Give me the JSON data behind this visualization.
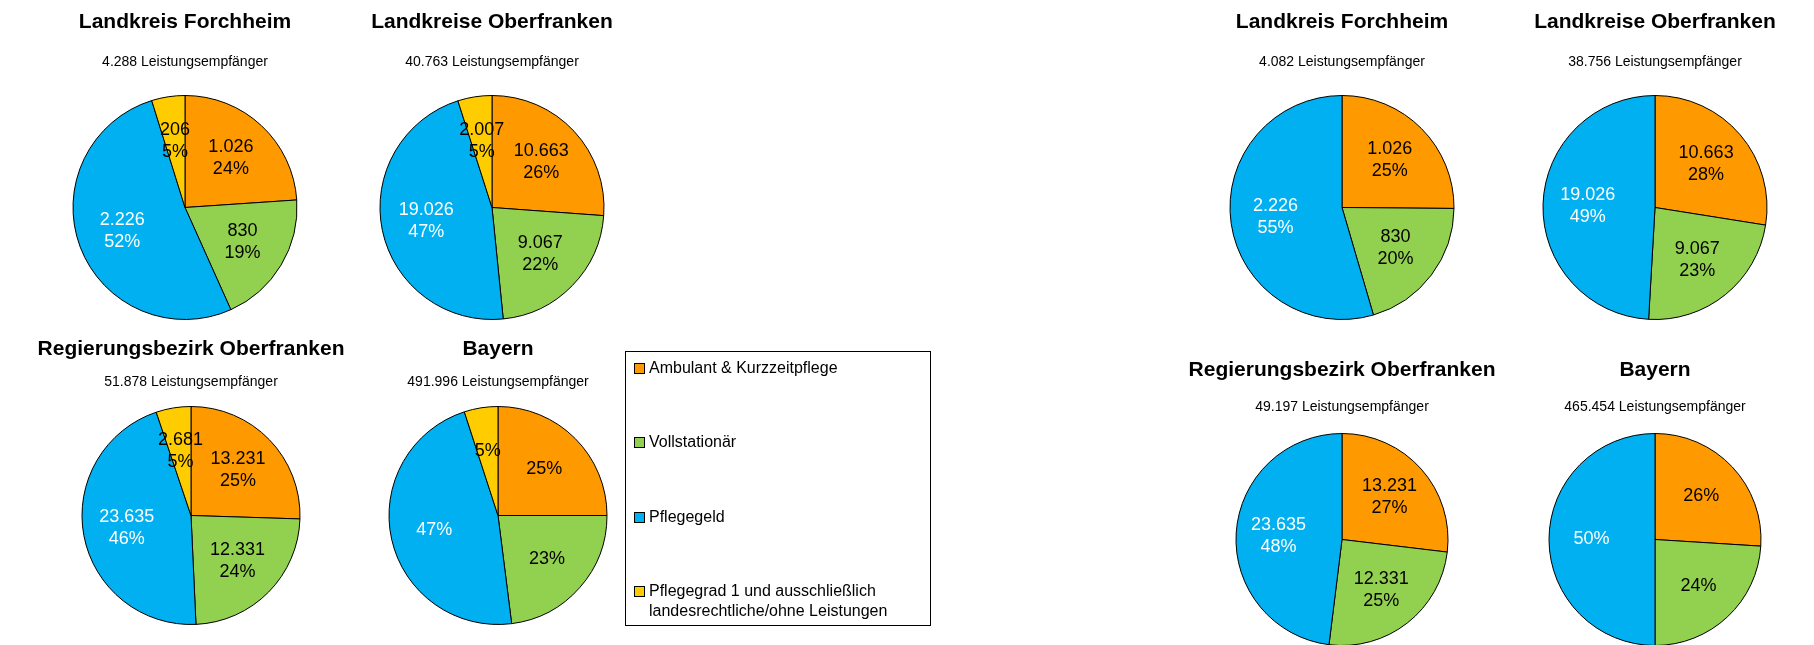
{
  "chart_data": [
    {
      "type": "pie",
      "title": "Landkreis Forchheim",
      "subtitle": "4.288 Leistungsempfänger",
      "categories": [
        null,
        null,
        null,
        null
      ],
      "values": [
        1026,
        830,
        2226,
        206
      ],
      "colors": [
        "#ff9900",
        "#92d050",
        "#00b0f0",
        "#ffcc00"
      ],
      "value_labels": [
        "1.026\n24%",
        "830\n19%",
        "2.226\n52%",
        "206\n5%"
      ]
    },
    {
      "type": "pie",
      "title": "Landkreise Oberfranken",
      "subtitle": "40.763 Leistungsempfänger",
      "categories": [
        null,
        null,
        null,
        null
      ],
      "values": [
        10663,
        9067,
        19026,
        2007
      ],
      "colors": [
        "#ff9900",
        "#92d050",
        "#00b0f0",
        "#ffcc00"
      ],
      "value_labels": [
        "10.663\n26%",
        "9.067\n22%",
        "19.026\n47%",
        "2.007\n5%"
      ]
    },
    {
      "type": "pie",
      "title": "Regierungsbezirk Oberfranken",
      "subtitle": "51.878 Leistungsempfänger",
      "categories": [
        null,
        null,
        null,
        null
      ],
      "values": [
        13231,
        12331,
        23635,
        2681
      ],
      "colors": [
        "#ff9900",
        "#92d050",
        "#00b0f0",
        "#ffcc00"
      ],
      "value_labels": [
        "13.231\n25%",
        "12.331\n24%",
        "23.635\n46%",
        "2.681\n5%"
      ]
    },
    {
      "type": "pie",
      "title": "Bayern",
      "subtitle": "491.996 Leistungsempfänger",
      "categories": [
        "Ambulant & Kurzzeitpflege",
        "Vollstationär",
        "Pflegegeld",
        "Pflegegrad 1 und ausschließlich landesrechtliche/ohne Leistungen"
      ],
      "values": [
        25,
        23,
        47,
        5
      ],
      "colors": [
        "#ff9900",
        "#92d050",
        "#00b0f0",
        "#ffcc00"
      ],
      "value_labels": [
        "25%",
        "23%",
        "47%",
        "5%"
      ],
      "legend": "right"
    },
    {
      "type": "pie",
      "title": "Landkreis Forchheim",
      "subtitle": "4.082 Leistungsempfänger",
      "categories": [
        null,
        null,
        null
      ],
      "values": [
        1026,
        830,
        2226
      ],
      "colors": [
        "#ff9900",
        "#92d050",
        "#00b0f0"
      ],
      "value_labels": [
        "1.026\n25%",
        "830\n20%",
        "2.226\n55%"
      ]
    },
    {
      "type": "pie",
      "title": "Landkreise Oberfranken",
      "subtitle": "38.756 Leistungsempfänger",
      "categories": [
        null,
        null,
        null
      ],
      "values": [
        10663,
        9067,
        19026
      ],
      "colors": [
        "#ff9900",
        "#92d050",
        "#00b0f0"
      ],
      "value_labels": [
        "10.663\n28%",
        "9.067\n23%",
        "19.026\n49%"
      ]
    },
    {
      "type": "pie",
      "title": "Regierungsbezirk Oberfranken",
      "subtitle": "49.197 Leistungsempfänger",
      "categories": [
        null,
        null,
        null
      ],
      "values": [
        13231,
        12331,
        23635
      ],
      "colors": [
        "#ff9900",
        "#92d050",
        "#00b0f0"
      ],
      "value_labels": [
        "13.231\n27%",
        "12.331\n25%",
        "23.635\n48%"
      ]
    },
    {
      "type": "pie",
      "title": "Bayern",
      "subtitle": "465.454 Leistungsempfänger",
      "categories": [
        null,
        null,
        null
      ],
      "values": [
        26,
        24,
        50
      ],
      "colors": [
        "#ff9900",
        "#92d050",
        "#00b0f0"
      ],
      "value_labels": [
        "26%",
        "24%",
        "50%"
      ]
    }
  ]
}
